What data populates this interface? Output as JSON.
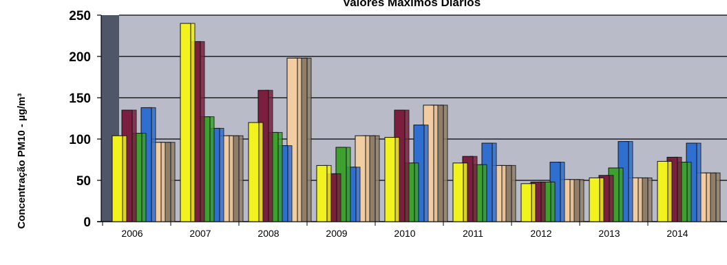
{
  "chart_data": {
    "type": "bar",
    "title": "Valores Máximos Diários",
    "ylabel": "Concentração PM10 - µg/m³",
    "xlabel": "",
    "ylim": [
      0,
      250
    ],
    "yticks": [
      0,
      50,
      100,
      150,
      200,
      250
    ],
    "grid": true,
    "legend": "none",
    "categories": [
      "2006",
      "2007",
      "2008",
      "2009",
      "2010",
      "2011",
      "2012",
      "2013",
      "2014"
    ],
    "series": [
      {
        "color": "#f2f21e",
        "values": [
          104,
          240,
          120,
          68,
          102,
          71,
          46,
          53,
          73
        ]
      },
      {
        "color": "#7a1f3d",
        "values": [
          135,
          218,
          159,
          58,
          135,
          79,
          48,
          56,
          78
        ]
      },
      {
        "color": "#3ca12d",
        "values": [
          107,
          127,
          108,
          90,
          71,
          69,
          48,
          65,
          72
        ]
      },
      {
        "color": "#2f6fd0",
        "values": [
          138,
          113,
          92,
          66,
          117,
          95,
          72,
          97,
          95
        ]
      },
      {
        "color": "#f3cda2",
        "values": [
          96,
          104,
          198,
          104,
          141,
          68,
          51,
          53,
          59
        ]
      },
      {
        "color": "#8f7f6a",
        "values": [
          96,
          104,
          198,
          104,
          141,
          68,
          51,
          53,
          59
        ]
      }
    ],
    "plot_background": "#b9bcc8",
    "wall_color": "#4f5668"
  }
}
